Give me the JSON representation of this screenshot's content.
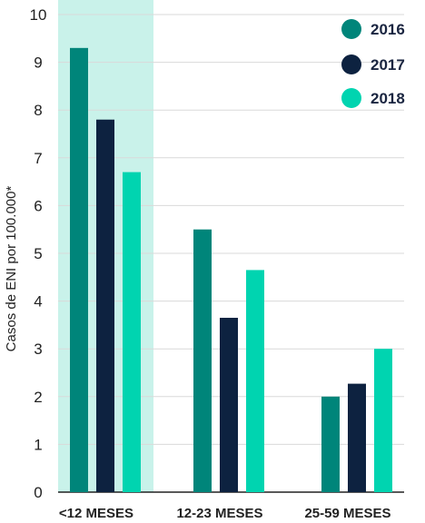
{
  "chart_data": {
    "type": "bar",
    "ylabel": "Casos de ENI por 100.000*",
    "xlabel": "",
    "ylim": [
      0,
      10
    ],
    "yticks": [
      0,
      1,
      2,
      3,
      4,
      5,
      6,
      7,
      8,
      9,
      10
    ],
    "grid": true,
    "legend_position": "top-right",
    "categories": [
      "<12 MESES",
      "12-23 MESES",
      "25-59 MESES"
    ],
    "highlighted_category": "<12 MESES",
    "highlight_color": "#c9f2ea",
    "series": [
      {
        "name": "2016",
        "color": "#00857a",
        "values": [
          9.3,
          5.5,
          2.0
        ]
      },
      {
        "name": "2017",
        "color": "#0d2240",
        "values": [
          7.8,
          3.65,
          2.27
        ]
      },
      {
        "name": "2018",
        "color": "#00d4b0",
        "values": [
          6.7,
          4.65,
          3.0
        ]
      }
    ]
  }
}
